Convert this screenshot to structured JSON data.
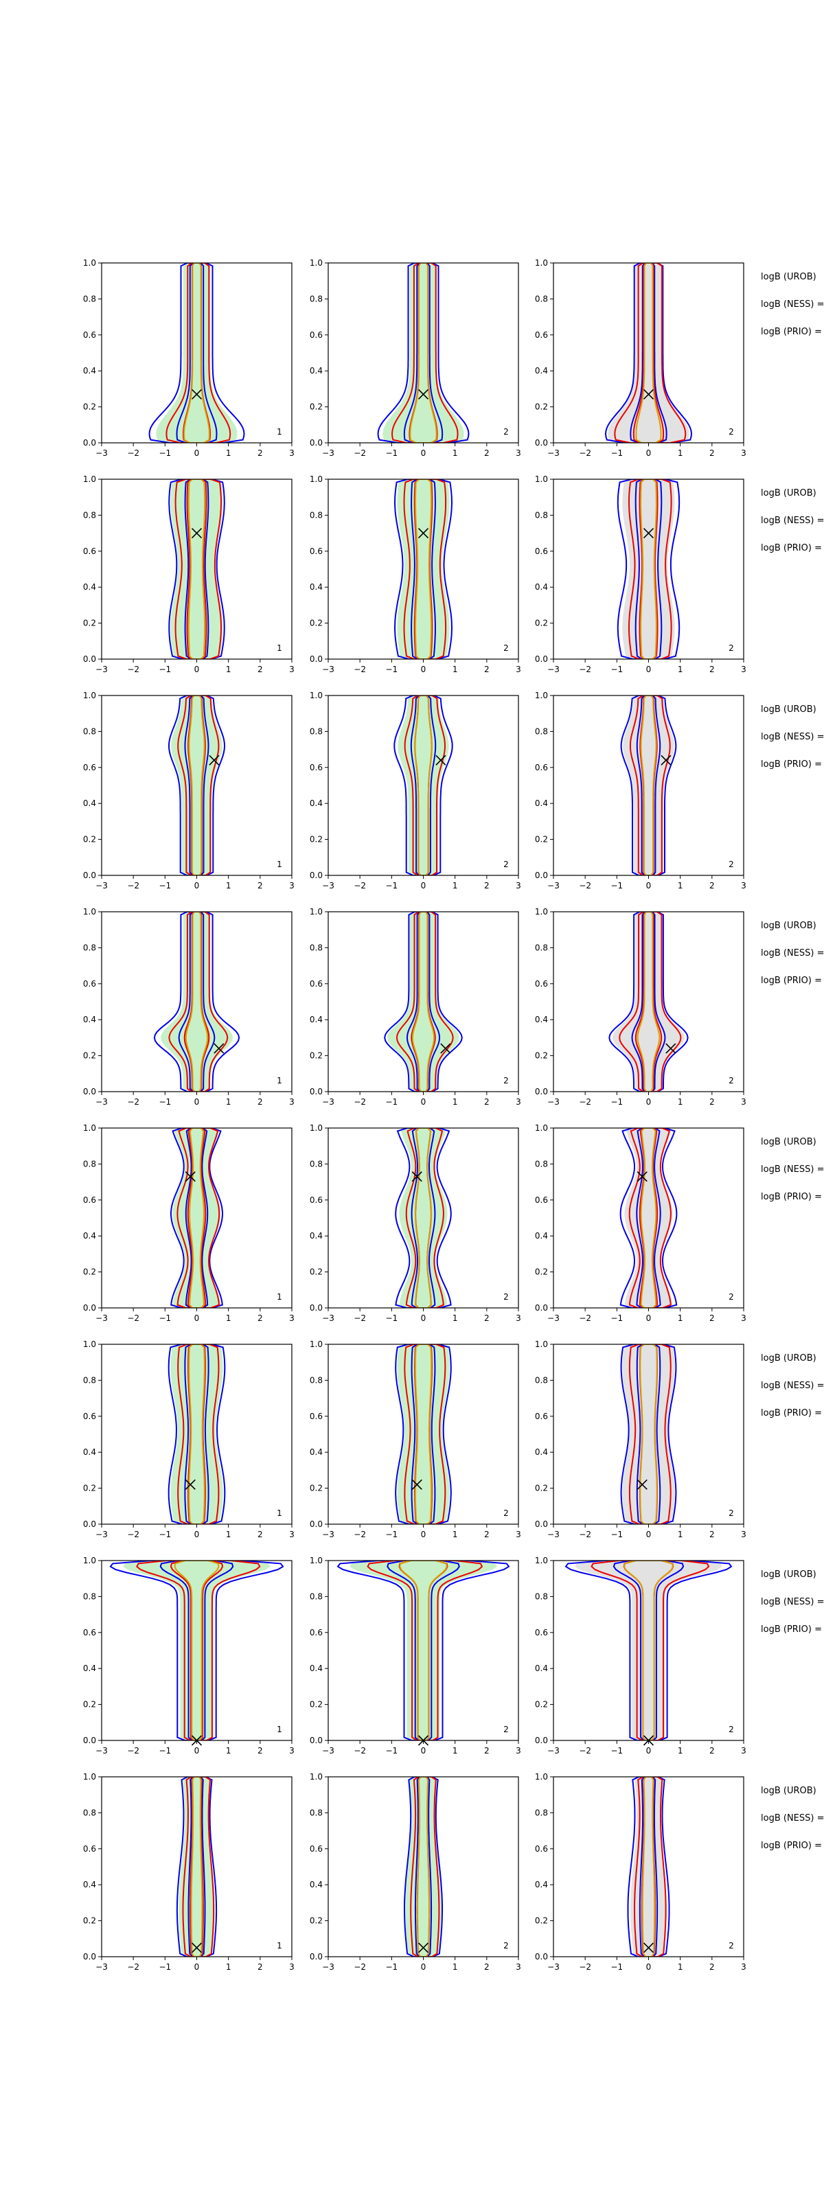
{
  "figure": {
    "background": "#ffffff",
    "colors": {
      "fill_green": "#c8f0c8",
      "fill_gray": "#e2e2e2",
      "contour_blue": "#0000ee",
      "contour_red": "#ee0000",
      "contour_orange": "#d9a000",
      "marker": "#000000"
    },
    "row_labels": [
      "logB (UROB)",
      "logB (NESS) =",
      "logB (PRIO) ="
    ]
  },
  "chart_data": {
    "type": "violin-contour-grid",
    "layout": {
      "rows": 8,
      "columns": 3
    },
    "xlim": [
      -3,
      3
    ],
    "ylim": [
      0,
      1
    ],
    "xticks": [
      "−3",
      "−2",
      "−1",
      "0",
      "1",
      "2",
      "3"
    ],
    "yticks": [
      "0.0",
      "0.2",
      "0.4",
      "0.6",
      "0.8",
      "1.0"
    ],
    "column_panel_labels": [
      "1",
      "2",
      "2"
    ],
    "column_fill": [
      "green",
      "green",
      "gray"
    ],
    "contour_series_colors": [
      "blue",
      "red",
      "orange"
    ],
    "rows": [
      {
        "marker": {
          "x": 0.0,
          "y": 0.27
        },
        "shape": "cone-low"
      },
      {
        "marker": {
          "x": 0.0,
          "y": 0.7
        },
        "shape": "column"
      },
      {
        "marker": {
          "x": 0.55,
          "y": 0.64
        },
        "shape": "bulb-high"
      },
      {
        "marker": {
          "x": 0.7,
          "y": 0.24
        },
        "shape": "lobe-low"
      },
      {
        "marker": {
          "x": -0.2,
          "y": 0.73
        },
        "shape": "bulbs"
      },
      {
        "marker": {
          "x": -0.2,
          "y": 0.22
        },
        "shape": "column"
      },
      {
        "marker": {
          "x": 0.0,
          "y": 0.0
        },
        "shape": "tee"
      },
      {
        "marker": {
          "x": 0.0,
          "y": 0.05
        },
        "shape": "narrow"
      }
    ]
  }
}
